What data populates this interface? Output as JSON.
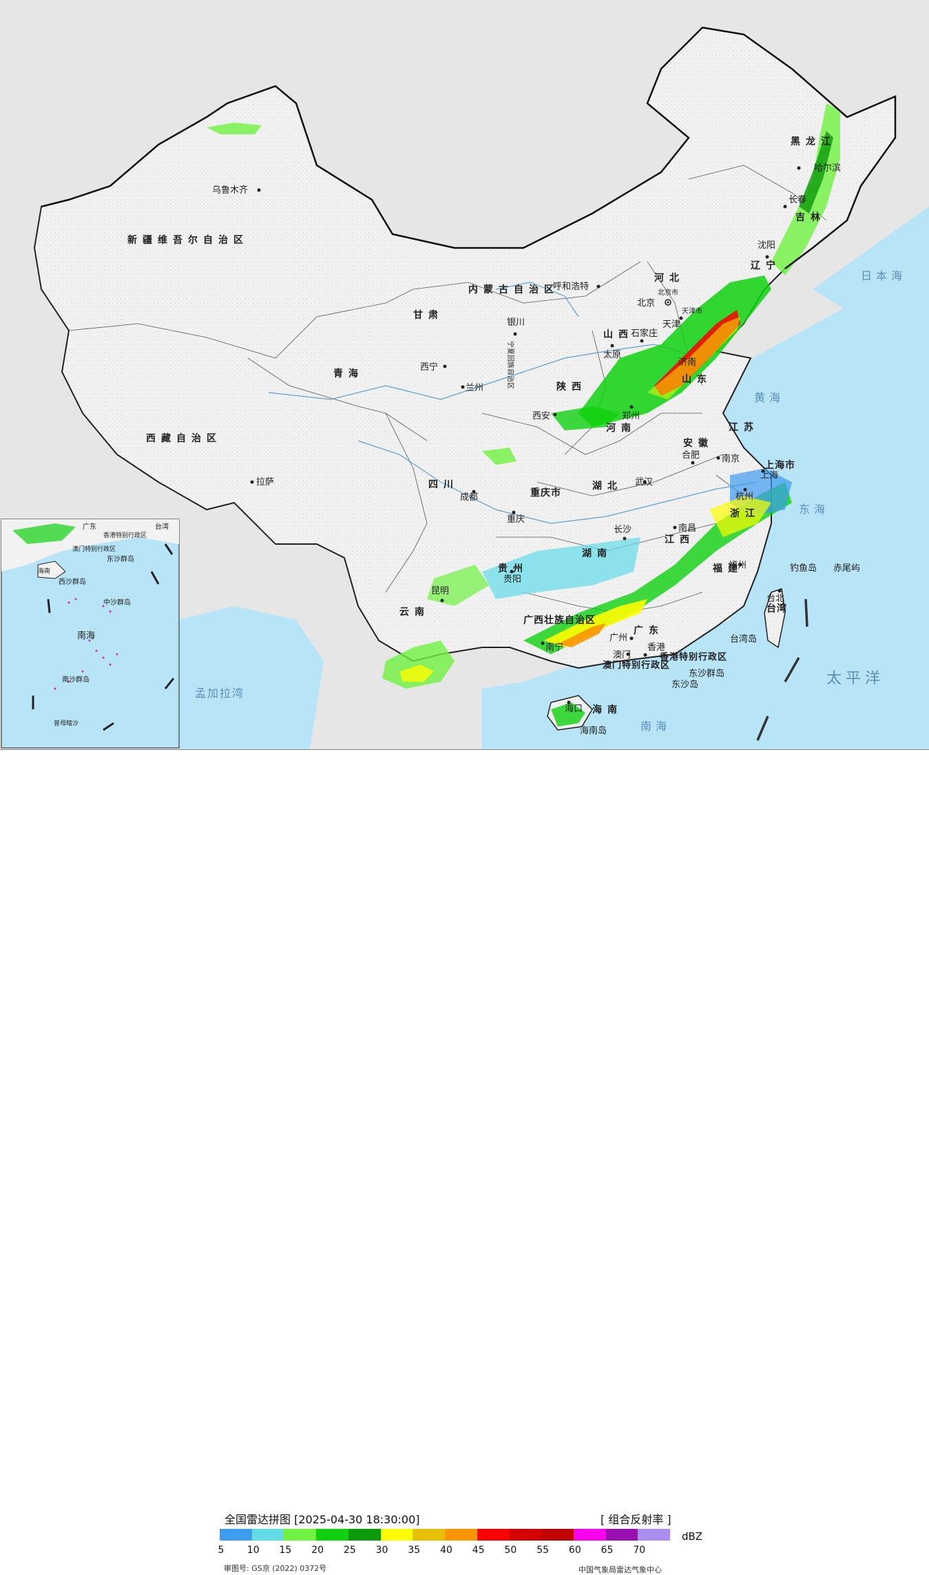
{
  "map": {
    "ocean_color": "#b7e4f7",
    "land_color": "#f4f4f4",
    "foreign_land_color": "#e6e6e6",
    "regions": [
      "新疆维吾尔自治区",
      "西藏自治区",
      "青海",
      "甘肃",
      "四川",
      "云南",
      "内蒙古自治区",
      "黑龙江",
      "吉林",
      "辽宁",
      "河北",
      "山西",
      "陕西",
      "河南",
      "山东",
      "江苏",
      "安徽",
      "湖北",
      "湖南",
      "江西",
      "浙江",
      "福建",
      "广东",
      "广西壮族自治区",
      "贵州",
      "重庆市",
      "上海市",
      "海南",
      "台湾",
      "宁夏回族自治区",
      "北京市",
      "天津市",
      "香港特别行政区",
      "澳门特别行政区"
    ],
    "cities": [
      "乌鲁木齐",
      "拉萨",
      "西宁",
      "兰州",
      "银川",
      "呼和浩特",
      "北京",
      "天津",
      "石家庄",
      "太原",
      "西安",
      "郑州",
      "济南",
      "南京",
      "合肥",
      "上海",
      "杭州",
      "武汉",
      "长沙",
      "南昌",
      "福州",
      "台北",
      "成都",
      "重庆",
      "贵阳",
      "昆明",
      "南宁",
      "广州",
      "香港",
      "澳门",
      "海口",
      "哈尔滨",
      "长春",
      "沈阳"
    ],
    "seas": [
      "日本海",
      "黄海",
      "东海",
      "太平洋",
      "南海",
      "孟加拉湾"
    ],
    "islands": [
      "钓鱼岛",
      "赤尾屿",
      "台湾岛",
      "东沙群岛",
      "东沙岛",
      "海南岛"
    ],
    "inset_labels": [
      "南海",
      "东沙群岛",
      "西沙群岛",
      "中沙群岛",
      "南沙群岛",
      "曾母暗沙",
      "广东",
      "海南",
      "台湾",
      "香港特别行政区",
      "澳门特别行政区"
    ]
  },
  "legend": {
    "title": "全国雷达拼图 [2025-04-30 18:30:00]",
    "product": "[ 组合反射率 ]",
    "unit": "dBZ",
    "colors": [
      "#3d9bf0",
      "#62dde8",
      "#6ff240",
      "#0fd10f",
      "#0a9a0a",
      "#fefe00",
      "#e6c100",
      "#fb9600",
      "#fe0000",
      "#d50000",
      "#c10000",
      "#fe00f0",
      "#9810b2",
      "#ad8df0"
    ],
    "ticks": [
      "5",
      "10",
      "15",
      "20",
      "25",
      "30",
      "35",
      "40",
      "45",
      "50",
      "55",
      "60",
      "65",
      "70"
    ],
    "approval_number": "审图号: GS京 (2022) 0372号",
    "credit": "中国气象局雷达气象中心"
  }
}
